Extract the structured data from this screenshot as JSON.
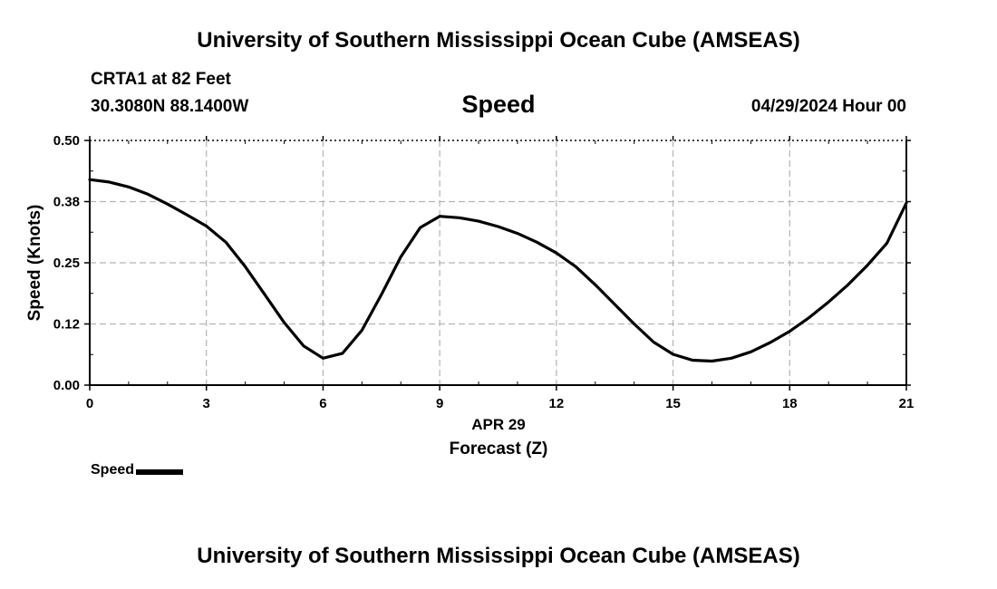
{
  "header": {
    "title": "University of Southern Mississippi Ocean Cube (AMSEAS)",
    "station": "CRTA1 at 82 Feet",
    "coords": "30.3080N  88.1400W",
    "date": "04/29/2024 Hour 00"
  },
  "footer": {
    "title": "University of Southern Mississippi Ocean Cube (AMSEAS)"
  },
  "chart_data": {
    "type": "line",
    "title": "Speed",
    "xlabel": "Forecast (Z)",
    "xlabel_date": "APR 29",
    "ylabel": "Speed (Knots)",
    "xlim": [
      0,
      21
    ],
    "ylim": [
      0,
      0.5
    ],
    "xticks": [
      0,
      3,
      6,
      9,
      12,
      15,
      18,
      21
    ],
    "xtick_labels": [
      "0",
      "3",
      "6",
      "9",
      "12",
      "15",
      "18",
      "21"
    ],
    "yticks": [
      0,
      0.125,
      0.25,
      0.375,
      0.5
    ],
    "ytick_labels": [
      "0.00",
      "0.12",
      "0.25",
      "0.38",
      "0.50"
    ],
    "grid": true,
    "legend_position": "bottom-left",
    "series": [
      {
        "name": "Speed",
        "color": "#000000",
        "x": [
          0,
          0.5,
          1,
          1.5,
          2,
          2.5,
          3,
          3.5,
          4,
          4.5,
          5,
          5.5,
          6,
          6.5,
          7,
          7.5,
          8,
          8.5,
          9,
          9.5,
          10,
          10.5,
          11,
          11.5,
          12,
          12.5,
          13,
          13.5,
          14,
          14.5,
          15,
          15.5,
          16,
          16.5,
          17,
          17.5,
          18,
          18.5,
          19,
          19.5,
          20,
          20.5,
          21
        ],
        "values": [
          0.42,
          0.415,
          0.405,
          0.39,
          0.37,
          0.348,
          0.325,
          0.292,
          0.242,
          0.185,
          0.128,
          0.08,
          0.055,
          0.065,
          0.112,
          0.185,
          0.262,
          0.322,
          0.345,
          0.342,
          0.335,
          0.324,
          0.31,
          0.292,
          0.27,
          0.242,
          0.205,
          0.165,
          0.125,
          0.088,
          0.063,
          0.051,
          0.049,
          0.055,
          0.068,
          0.087,
          0.11,
          0.138,
          0.17,
          0.205,
          0.245,
          0.29,
          0.372
        ]
      }
    ]
  }
}
